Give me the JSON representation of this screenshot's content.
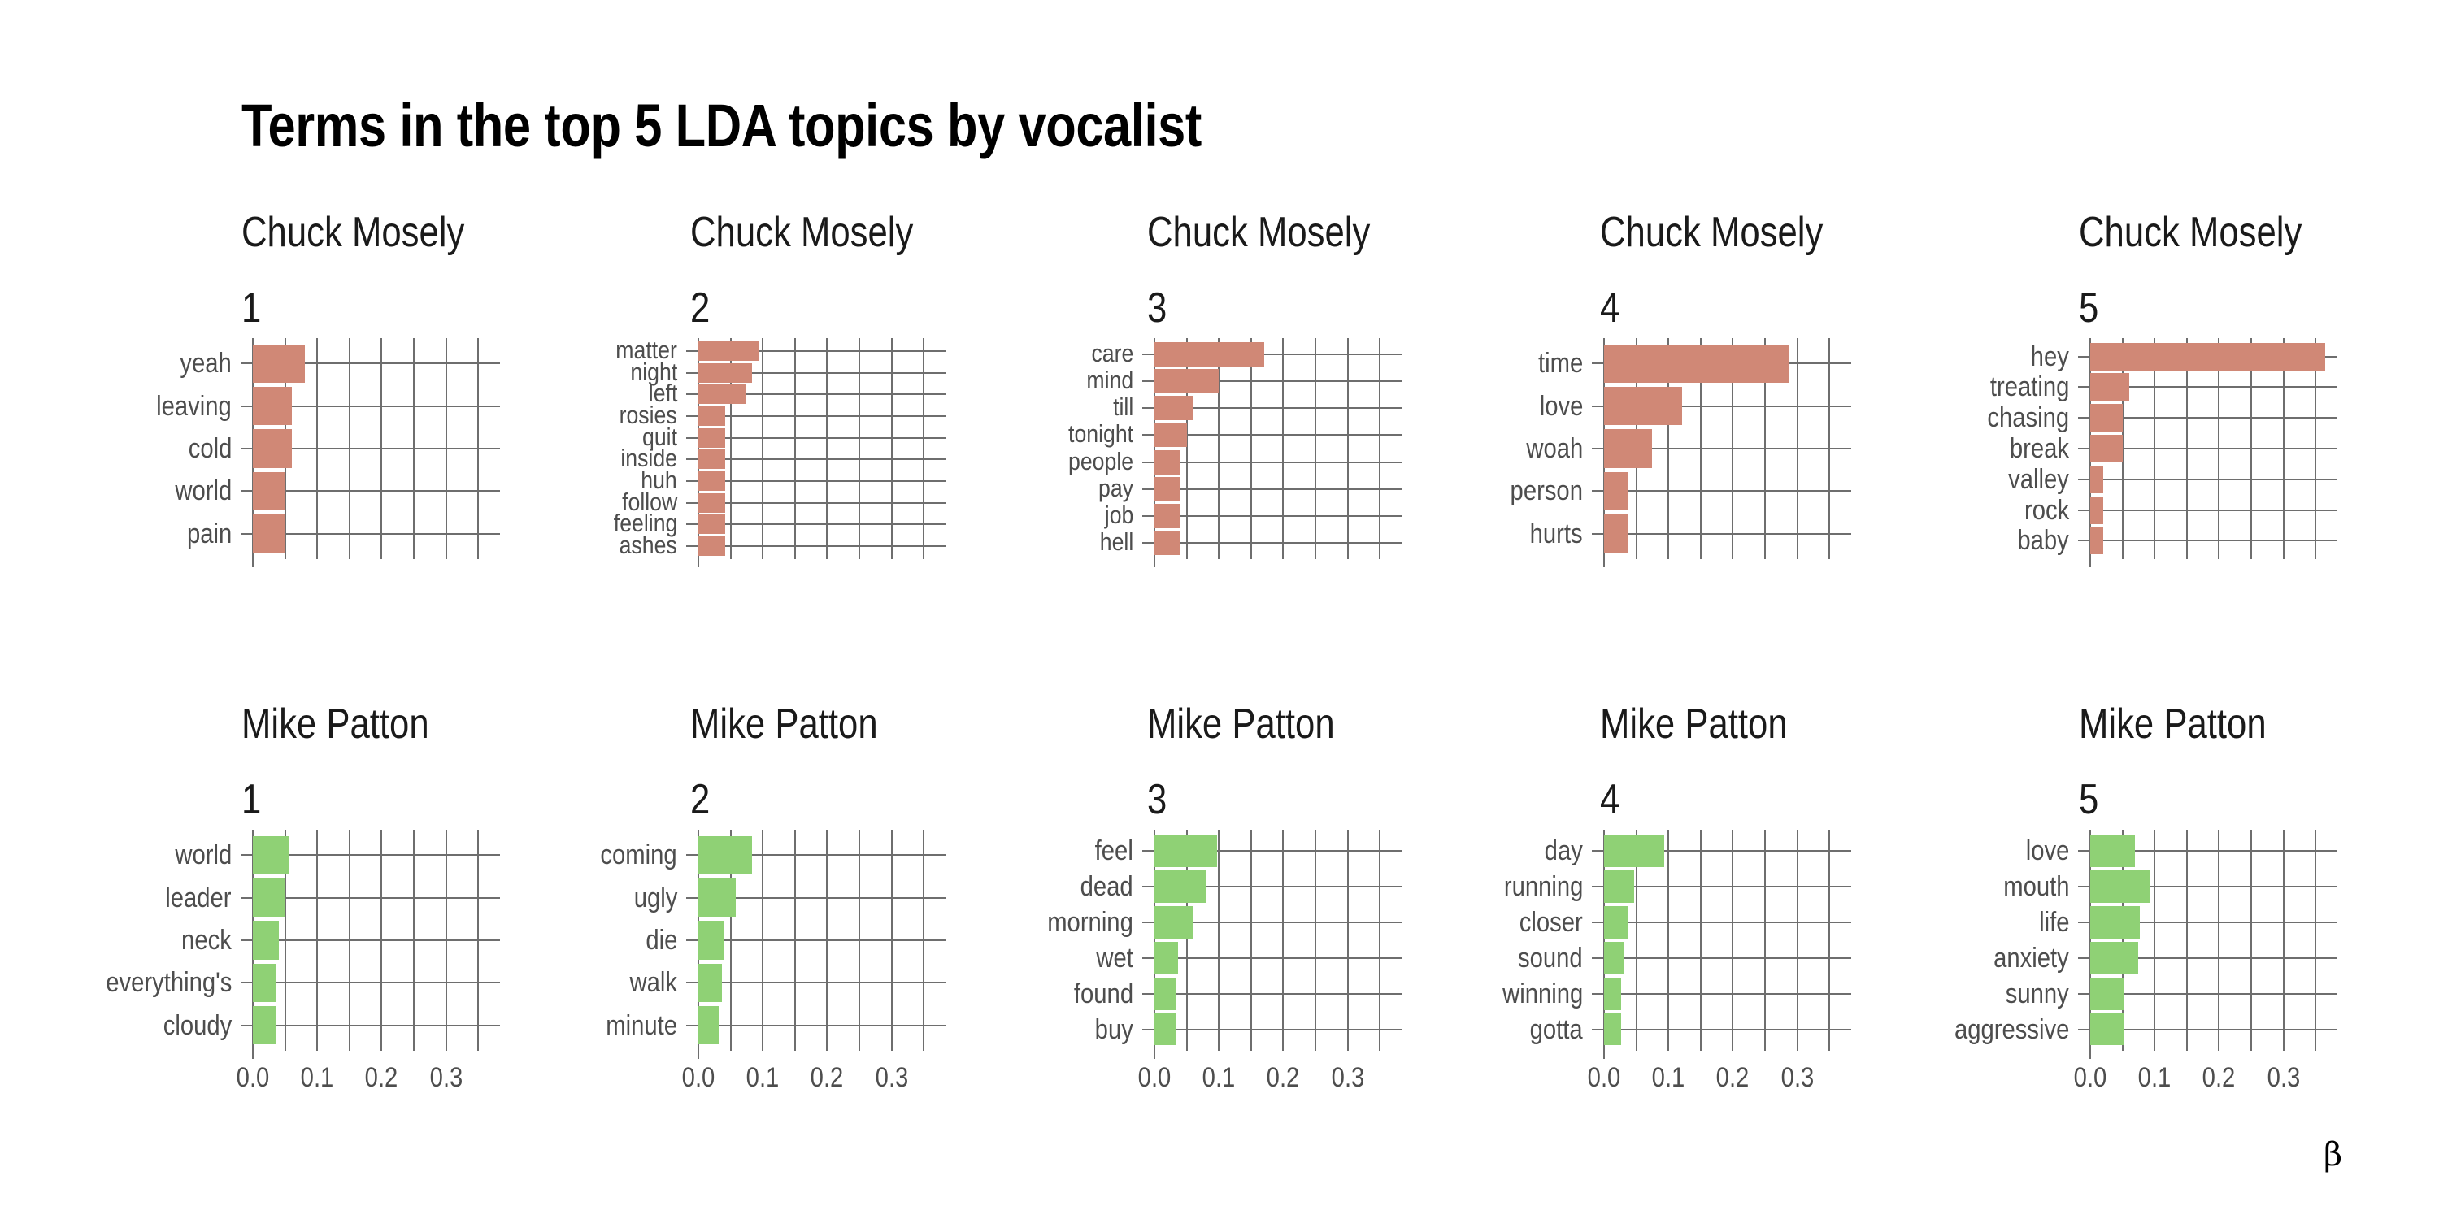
{
  "chart_data": {
    "type": "bar",
    "orientation": "horizontal",
    "title": "Terms in the top 5 LDA topics by vocalist",
    "xlabel": "β",
    "ylabel": "",
    "xlim": [
      0,
      0.385
    ],
    "x_ticks": [
      "0.0",
      "0.1",
      "0.2",
      "0.3"
    ],
    "grid": true,
    "legend": null,
    "facet_rows": [
      "Chuck Mosely",
      "Mike Patton"
    ],
    "colors": {
      "Chuck Mosely": "#D08876",
      "Mike Patton": "#8FD175"
    },
    "panels": [
      {
        "vocalist": "Chuck Mosely",
        "topic": "1",
        "terms": [
          "yeah",
          "leaving",
          "cold",
          "world",
          "pain"
        ],
        "values": [
          0.081,
          0.061,
          0.061,
          0.05,
          0.05
        ]
      },
      {
        "vocalist": "Chuck Mosely",
        "topic": "2",
        "terms": [
          "matter",
          "night",
          "left",
          "rosies",
          "quit",
          "inside",
          "huh",
          "follow",
          "feeling",
          "ashes"
        ],
        "values": [
          0.095,
          0.083,
          0.073,
          0.042,
          0.042,
          0.042,
          0.042,
          0.042,
          0.042,
          0.042
        ]
      },
      {
        "vocalist": "Chuck Mosely",
        "topic": "3",
        "terms": [
          "care",
          "mind",
          "till",
          "tonight",
          "people",
          "pay",
          "job",
          "hell"
        ],
        "values": [
          0.171,
          0.1,
          0.06,
          0.05,
          0.04,
          0.04,
          0.04,
          0.04
        ]
      },
      {
        "vocalist": "Chuck Mosely",
        "topic": "4",
        "terms": [
          "time",
          "love",
          "woah",
          "person",
          "hurts"
        ],
        "values": [
          0.288,
          0.121,
          0.074,
          0.037,
          0.037
        ]
      },
      {
        "vocalist": "Chuck Mosely",
        "topic": "5",
        "terms": [
          "hey",
          "treating",
          "chasing",
          "break",
          "valley",
          "rock",
          "baby"
        ],
        "values": [
          0.365,
          0.06,
          0.05,
          0.05,
          0.02,
          0.02,
          0.02
        ]
      },
      {
        "vocalist": "Mike Patton",
        "topic": "1",
        "terms": [
          "world",
          "leader",
          "neck",
          "everything's",
          "cloudy"
        ],
        "values": [
          0.057,
          0.051,
          0.04,
          0.035,
          0.035
        ]
      },
      {
        "vocalist": "Mike Patton",
        "topic": "2",
        "terms": [
          "coming",
          "ugly",
          "die",
          "walk",
          "minute"
        ],
        "values": [
          0.083,
          0.058,
          0.041,
          0.036,
          0.032
        ]
      },
      {
        "vocalist": "Mike Patton",
        "topic": "3",
        "terms": [
          "feel",
          "dead",
          "morning",
          "wet",
          "found",
          "buy"
        ],
        "values": [
          0.097,
          0.08,
          0.061,
          0.036,
          0.034,
          0.034
        ]
      },
      {
        "vocalist": "Mike Patton",
        "topic": "4",
        "terms": [
          "day",
          "running",
          "closer",
          "sound",
          "winning",
          "gotta"
        ],
        "values": [
          0.094,
          0.047,
          0.036,
          0.031,
          0.027,
          0.027
        ]
      },
      {
        "vocalist": "Mike Patton",
        "topic": "5",
        "terms": [
          "love",
          "mouth",
          "life",
          "anxiety",
          "sunny",
          "aggressive"
        ],
        "values": [
          0.07,
          0.094,
          0.077,
          0.075,
          0.053,
          0.053
        ]
      }
    ]
  }
}
